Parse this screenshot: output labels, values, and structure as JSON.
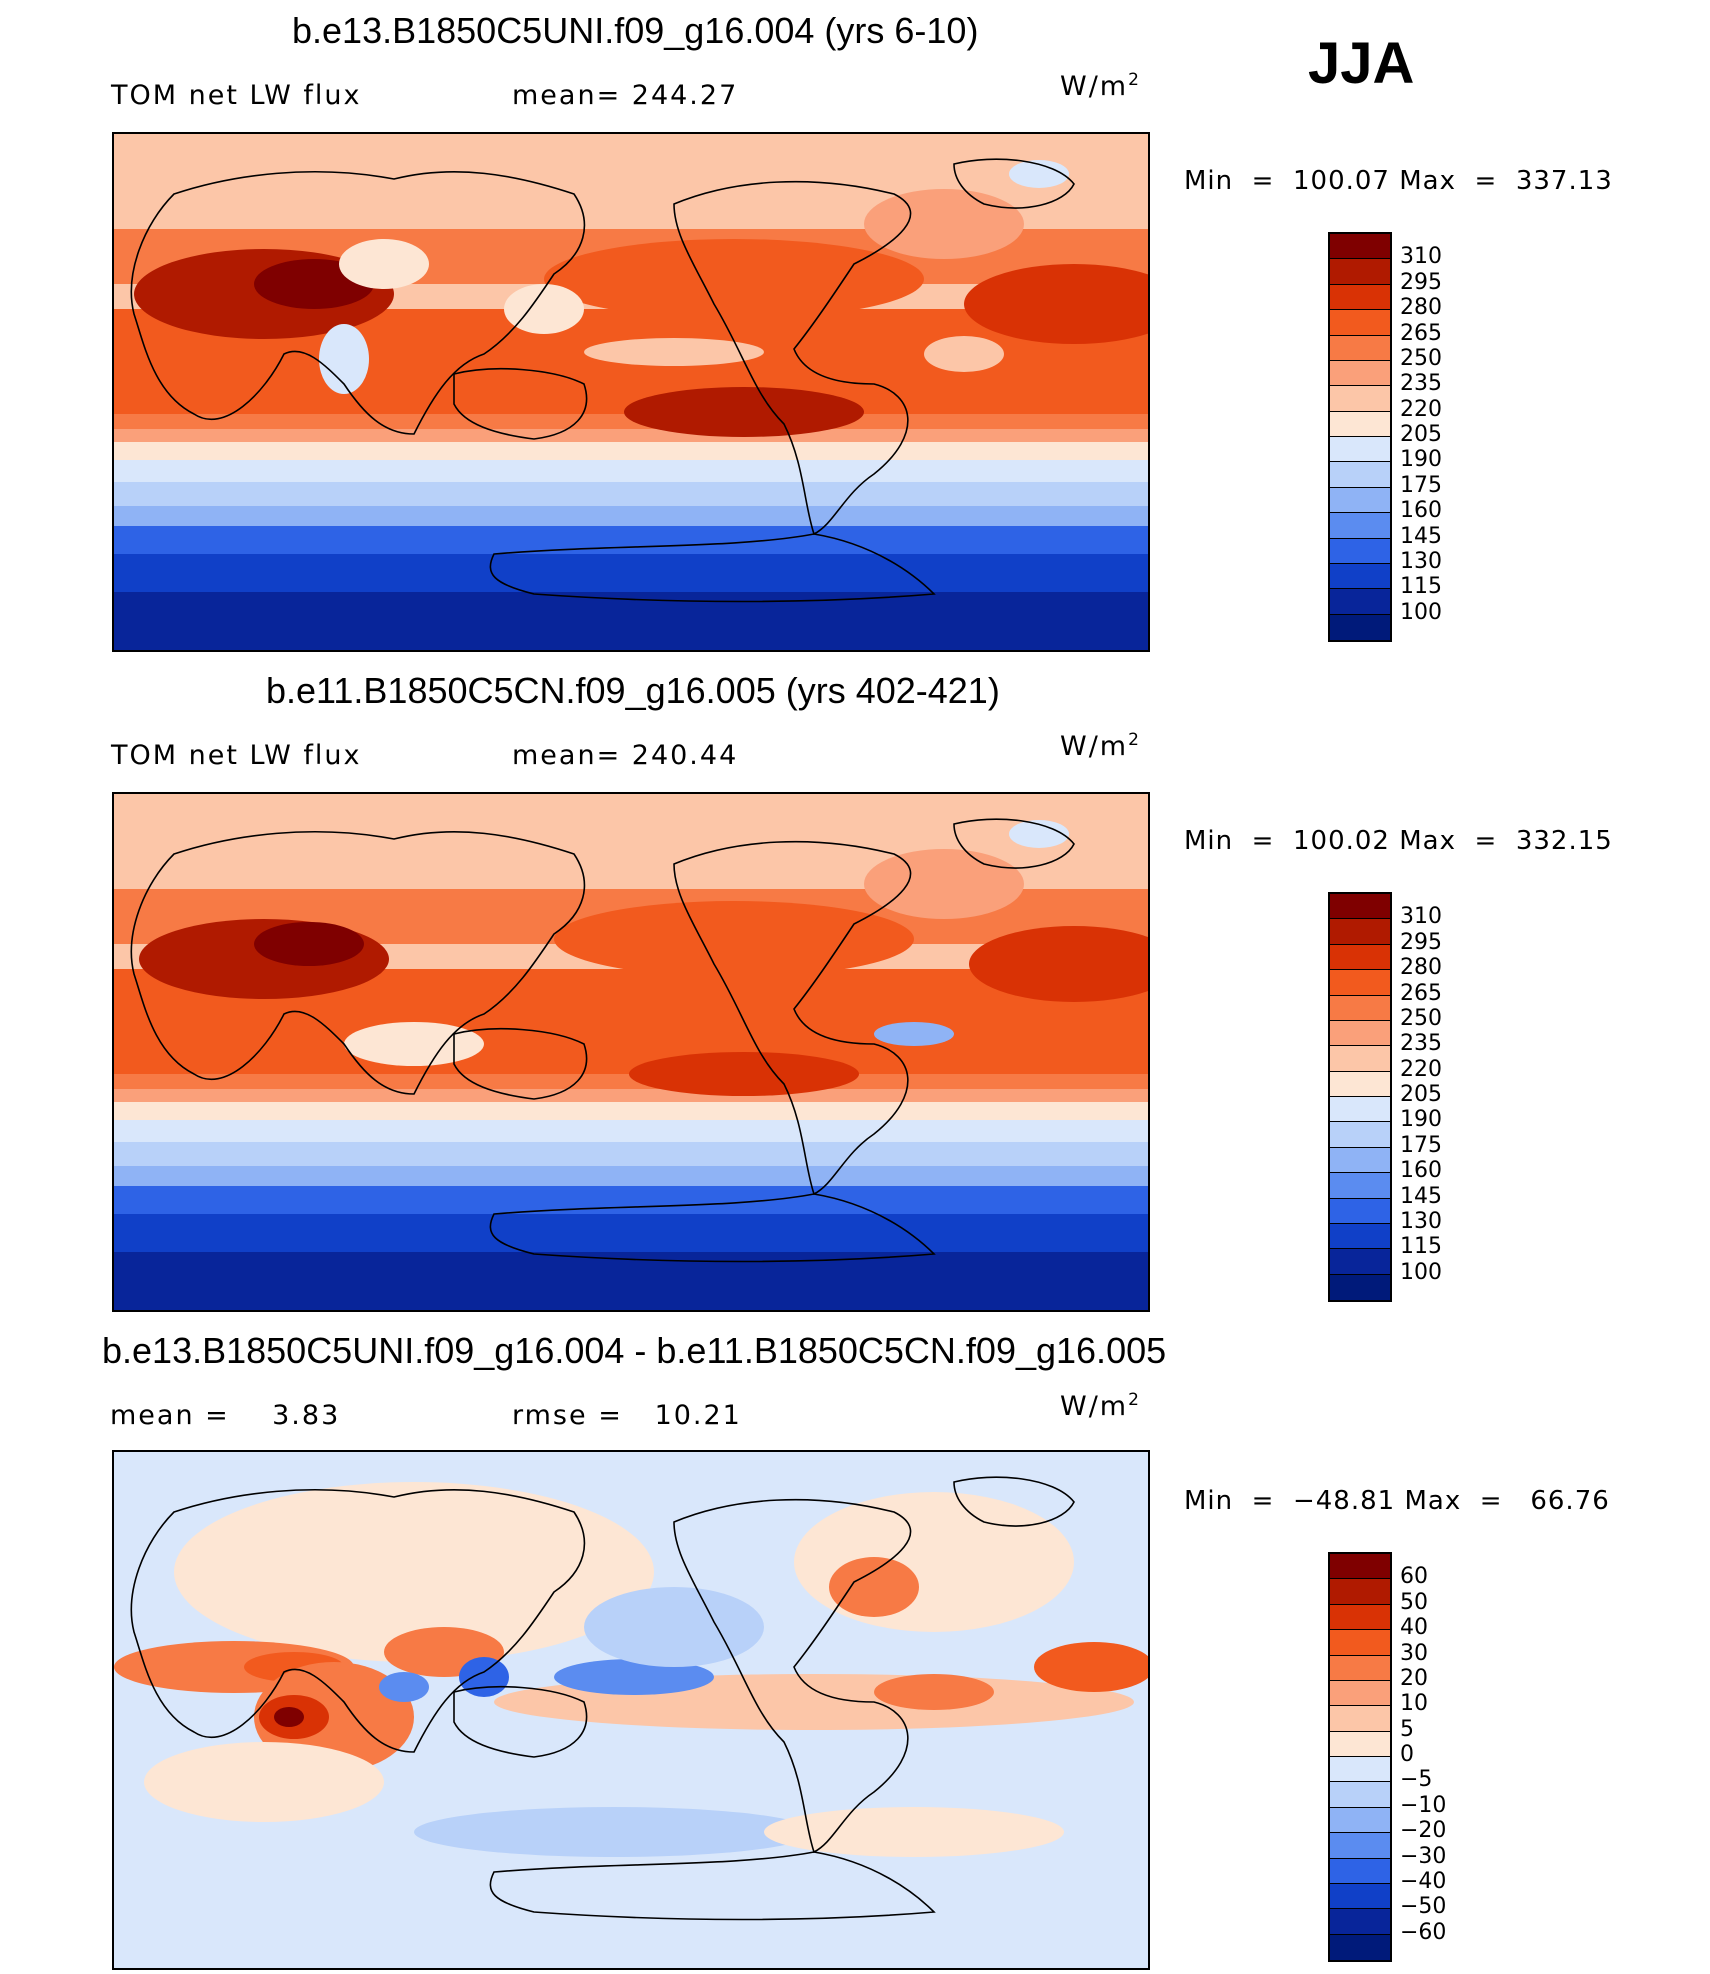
{
  "season": "JJA",
  "panels": [
    {
      "title": "b.e13.B1850C5UNI.f09_g16.004 (yrs 6-10)",
      "left_label": "TOM net LW flux",
      "center_label": "mean= 244.27",
      "units": "W/m",
      "units_sup": "2",
      "min_label": "Min",
      "min_value": "100.07",
      "max_label": "Max",
      "max_value": "337.13",
      "colorbar": [
        "310",
        "295",
        "280",
        "265",
        "250",
        "235",
        "220",
        "205",
        "190",
        "175",
        "160",
        "145",
        "130",
        "115",
        "100"
      ]
    },
    {
      "title": "b.e11.B1850C5CN.f09_g16.005 (yrs 402-421)",
      "left_label": "TOM net LW flux",
      "center_label": "mean= 240.44",
      "units": "W/m",
      "units_sup": "2",
      "min_label": "Min",
      "min_value": "100.02",
      "max_label": "Max",
      "max_value": "332.15",
      "colorbar": [
        "310",
        "295",
        "280",
        "265",
        "250",
        "235",
        "220",
        "205",
        "190",
        "175",
        "160",
        "145",
        "130",
        "115",
        "100"
      ]
    },
    {
      "title": "b.e13.B1850C5UNI.f09_g16.004 - b.e11.B1850C5CN.f09_g16.005",
      "left_label": "mean =",
      "left_value": "3.83",
      "center_label": "rmse =",
      "center_value": "10.21",
      "units": "W/m",
      "units_sup": "2",
      "min_label": "Min",
      "min_value": "−48.81",
      "max_label": "Max",
      "max_value": "66.76",
      "colorbar": [
        "60",
        "50",
        "40",
        "30",
        "20",
        "10",
        "5",
        "0",
        "−5",
        "−10",
        "−20",
        "−30",
        "−40",
        "−50",
        "−60"
      ]
    }
  ],
  "colors": {
    "abs_scale": [
      "#7f0000",
      "#b01a00",
      "#d93205",
      "#f25a1e",
      "#f77a45",
      "#faa07a",
      "#fcc6a8",
      "#fde6d4",
      "#d9e7fb",
      "#b8d1f9",
      "#8fb3f5",
      "#5b8cf0",
      "#2e63e6",
      "#1040c8",
      "#08259a",
      "#001a7a"
    ],
    "diff_scale": [
      "#7f0000",
      "#b01a00",
      "#d93205",
      "#f25a1e",
      "#f77a45",
      "#faa07a",
      "#fcc6a8",
      "#fde6d4",
      "#d9e7fb",
      "#b8d1f9",
      "#8fb3f5",
      "#5b8cf0",
      "#2e63e6",
      "#1040c8",
      "#08259a",
      "#001a7a"
    ]
  }
}
